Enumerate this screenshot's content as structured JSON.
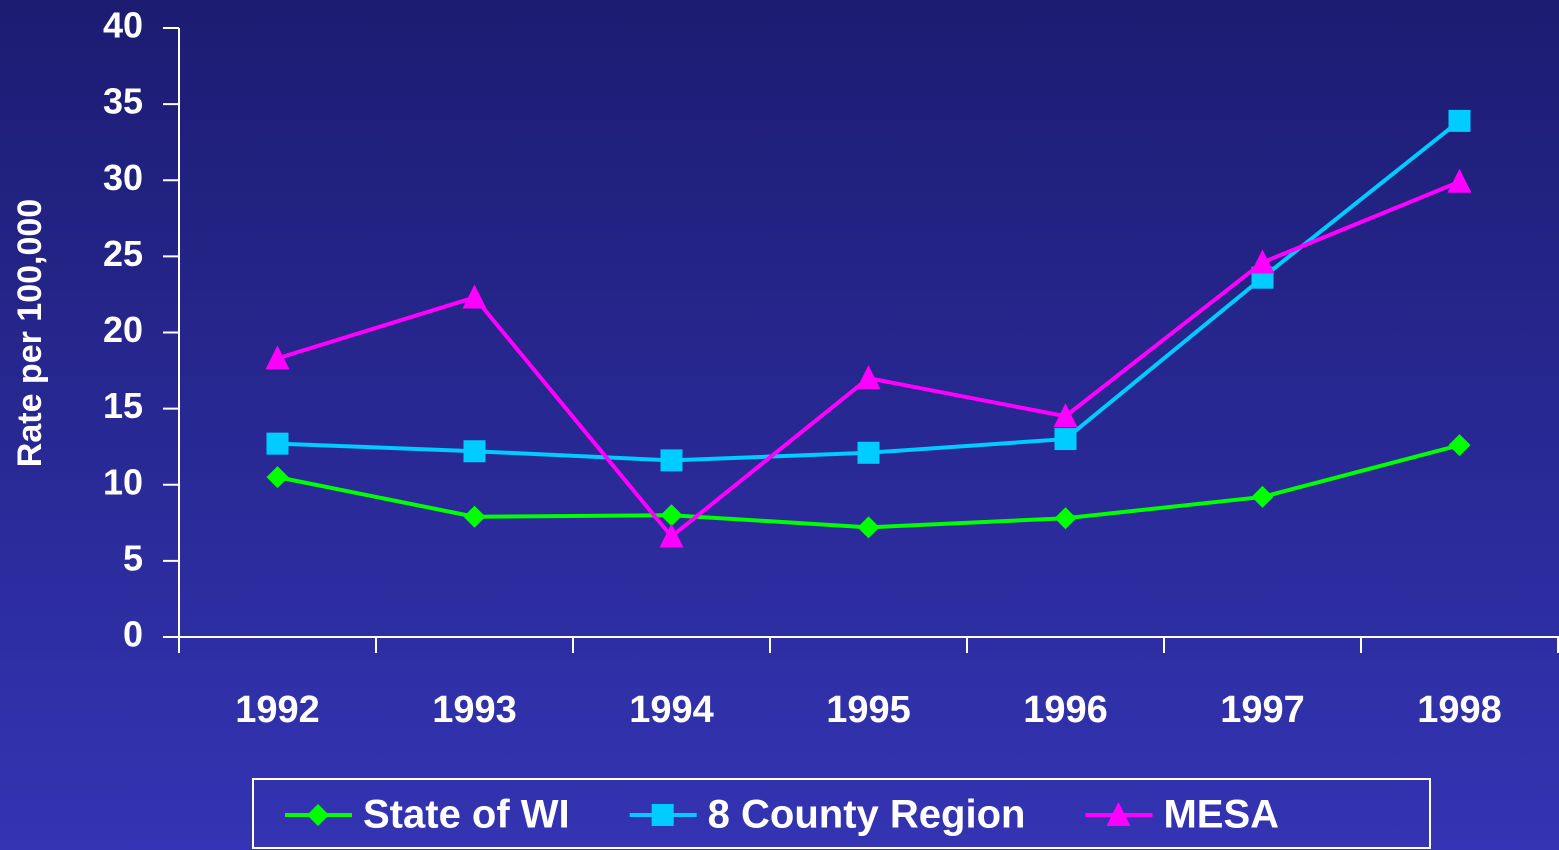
{
  "chart_data": {
    "type": "line",
    "y_label": "Rate per 100,000",
    "categories": [
      "1992",
      "1993",
      "1994",
      "1995",
      "1996",
      "1997",
      "1998"
    ],
    "series": [
      {
        "name": "State of WI",
        "color": "#00ff00",
        "marker": "diamond",
        "values": [
          10.5,
          7.9,
          8.0,
          7.2,
          7.8,
          9.2,
          12.6
        ]
      },
      {
        "name": "8 County Region",
        "color": "#00ccff",
        "marker": "square",
        "values": [
          12.7,
          12.2,
          11.6,
          12.1,
          13.0,
          23.6,
          33.9
        ]
      },
      {
        "name": "MESA",
        "color": "#ff00ff",
        "marker": "triangle",
        "values": [
          18.3,
          22.3,
          6.6,
          17.0,
          14.5,
          24.6,
          29.9
        ]
      }
    ],
    "ylim": [
      0,
      40
    ],
    "yticks": [
      0,
      5,
      10,
      15,
      20,
      25,
      30,
      35,
      40
    ],
    "legend": "bottom"
  }
}
